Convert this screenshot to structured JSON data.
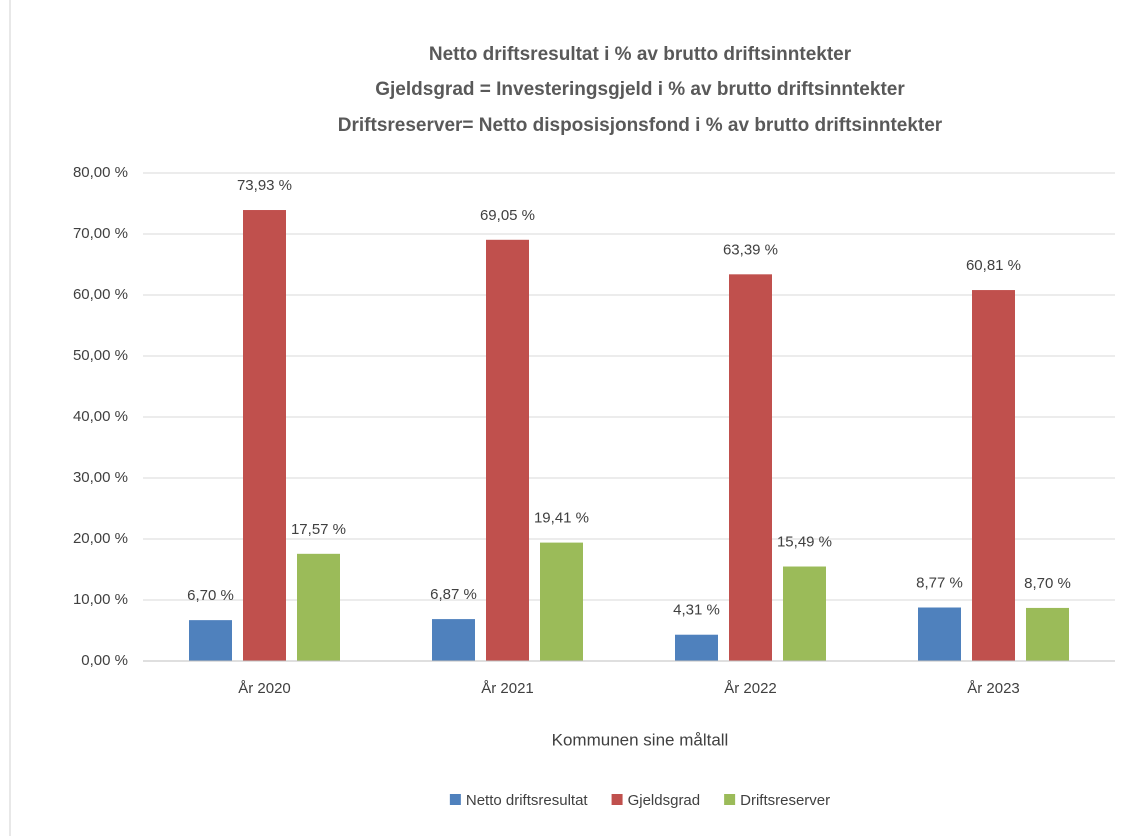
{
  "chart_data": {
    "type": "bar",
    "title": [
      "Netto driftsresultat i % av brutto driftsinntekter",
      "Gjeldsgrad = Investeringsgjeld i % av brutto driftsinntekter",
      "Driftsreserver= Netto disposisjonsfond i % av brutto driftsinntekter"
    ],
    "x_label": "Kommunen sine måltall",
    "categories": [
      "År 2020",
      "År 2021",
      "År 2022",
      "År 2023"
    ],
    "series": [
      {
        "name": "Netto driftsresultat",
        "color": "#4f81bd",
        "values": [
          6.7,
          6.87,
          4.31,
          8.77
        ],
        "value_labels": [
          "6,70 %",
          "6,87 %",
          "4,31 %",
          "8,77 %"
        ]
      },
      {
        "name": "Gjeldsgrad",
        "color": "#c0504d",
        "values": [
          73.93,
          69.05,
          63.39,
          60.81
        ],
        "value_labels": [
          "73,93 %",
          "69,05 %",
          "63,39 %",
          "60,81 %"
        ]
      },
      {
        "name": "Driftsreserver",
        "color": "#9bbb59",
        "values": [
          17.57,
          19.41,
          15.49,
          8.7
        ],
        "value_labels": [
          "17,57 %",
          "19,41 %",
          "15,49 %",
          "8,70 %"
        ]
      }
    ],
    "ylim": [
      0,
      80
    ],
    "yticks": [
      {
        "value": 0,
        "label": "0,00 %"
      },
      {
        "value": 10,
        "label": "10,00 %"
      },
      {
        "value": 20,
        "label": "20,00 %"
      },
      {
        "value": 30,
        "label": "30,00 %"
      },
      {
        "value": 40,
        "label": "40,00 %"
      },
      {
        "value": 50,
        "label": "50,00 %"
      },
      {
        "value": 60,
        "label": "60,00 %"
      },
      {
        "value": 70,
        "label": "70,00 %"
      },
      {
        "value": 80,
        "label": "80,00 %"
      }
    ],
    "grid": true,
    "legend": "bottom"
  }
}
